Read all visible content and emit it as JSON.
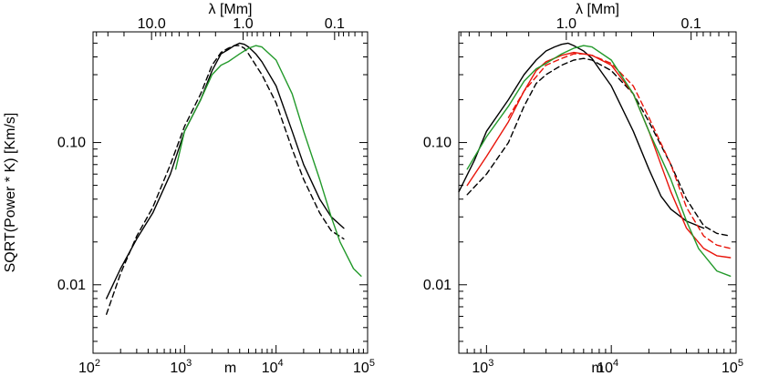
{
  "chart_data": [
    {
      "type": "line",
      "xscale": "log",
      "yscale": "log",
      "xlim": [
        100,
        100000
      ],
      "ylim": [
        0.0033,
        0.6
      ],
      "xlabel": "m",
      "ylabel": "SQRT(Power * K)  [Km/s]",
      "top_axis_label": "λ  [Mm]",
      "x_tick_labels": [
        {
          "base": "10",
          "exp": "2",
          "value": 100
        },
        {
          "base": "10",
          "exp": "3",
          "value": 1000
        },
        {
          "base": "10",
          "exp": "4",
          "value": 10000
        },
        {
          "base": "10",
          "exp": "5",
          "value": 100000
        }
      ],
      "y_tick_labels": [
        {
          "label": "0.01",
          "value": 0.01
        },
        {
          "label": "0.10",
          "value": 0.1
        }
      ],
      "top_tick_labels": [
        {
          "label": "10.0",
          "m": 436
        },
        {
          "label": "1.0",
          "m": 4360
        },
        {
          "label": "0.1",
          "m": 43600
        }
      ],
      "series": [
        {
          "name": "black-solid",
          "color": "#000000",
          "dash": "",
          "x": [
            140,
            200,
            300,
            450,
            700,
            1000,
            1500,
            2000,
            2500,
            3000,
            3500,
            4000,
            4500,
            5000,
            6000,
            7000,
            10000,
            15000,
            20000,
            30000,
            40000,
            55000
          ],
          "y": [
            0.008,
            0.013,
            0.021,
            0.032,
            0.06,
            0.12,
            0.2,
            0.32,
            0.42,
            0.45,
            0.48,
            0.5,
            0.49,
            0.47,
            0.42,
            0.37,
            0.25,
            0.12,
            0.07,
            0.04,
            0.03,
            0.025
          ]
        },
        {
          "name": "black-dashed",
          "color": "#000000",
          "dash": "6,4",
          "x": [
            140,
            200,
            300,
            450,
            700,
            1000,
            1500,
            2000,
            2500,
            3000,
            3500,
            4000,
            4500,
            5000,
            6000,
            7000,
            10000,
            15000,
            20000,
            30000,
            40000,
            55000
          ],
          "y": [
            0.0062,
            0.012,
            0.022,
            0.035,
            0.07,
            0.13,
            0.22,
            0.35,
            0.43,
            0.46,
            0.48,
            0.48,
            0.46,
            0.42,
            0.35,
            0.3,
            0.19,
            0.09,
            0.055,
            0.032,
            0.024,
            0.021
          ]
        },
        {
          "name": "green",
          "color": "#22992a",
          "dash": "",
          "x": [
            800,
            1000,
            1500,
            2000,
            2500,
            3000,
            4000,
            5000,
            6000,
            7000,
            10000,
            15000,
            20000,
            30000,
            40000,
            50000,
            70000,
            85000
          ],
          "y": [
            0.065,
            0.12,
            0.2,
            0.3,
            0.35,
            0.37,
            0.42,
            0.46,
            0.48,
            0.47,
            0.38,
            0.22,
            0.12,
            0.055,
            0.03,
            0.02,
            0.013,
            0.0115
          ]
        }
      ]
    },
    {
      "type": "line",
      "xscale": "log",
      "yscale": "log",
      "xlim": [
        600,
        100000
      ],
      "ylim": [
        0.0033,
        0.6
      ],
      "xlabel": "m",
      "ylabel": "",
      "top_axis_label": "λ  [Mm]",
      "x_tick_labels": [
        {
          "base": "10",
          "exp": "3",
          "value": 1000
        },
        {
          "base": "10",
          "exp": "4",
          "value": 10000
        },
        {
          "base": "10",
          "exp": "5",
          "value": 100000
        }
      ],
      "y_tick_labels": [
        {
          "label": "0.01",
          "value": 0.01
        },
        {
          "label": "0.10",
          "value": 0.1
        }
      ],
      "top_tick_labels": [
        {
          "label": "1.0",
          "m": 4360
        },
        {
          "label": "0.1",
          "m": 43600
        }
      ],
      "series": [
        {
          "name": "black-solid",
          "color": "#000000",
          "dash": "",
          "x": [
            600,
            800,
            1000,
            1500,
            2000,
            2500,
            3000,
            3500,
            4000,
            4500,
            5000,
            6000,
            7000,
            8000,
            10000,
            12000,
            15000,
            20000,
            25000,
            30000,
            40000,
            55000
          ],
          "y": [
            0.045,
            0.075,
            0.12,
            0.2,
            0.3,
            0.38,
            0.44,
            0.47,
            0.49,
            0.5,
            0.48,
            0.44,
            0.39,
            0.33,
            0.25,
            0.18,
            0.12,
            0.065,
            0.042,
            0.034,
            0.028,
            0.025
          ]
        },
        {
          "name": "black-dashed",
          "color": "#000000",
          "dash": "6,4",
          "x": [
            700,
            1000,
            1500,
            2000,
            2500,
            3000,
            4000,
            5000,
            6000,
            7000,
            10000,
            15000,
            20000,
            30000,
            40000,
            55000,
            70000,
            90000
          ],
          "y": [
            0.043,
            0.06,
            0.1,
            0.18,
            0.26,
            0.3,
            0.35,
            0.38,
            0.39,
            0.38,
            0.32,
            0.22,
            0.14,
            0.07,
            0.04,
            0.026,
            0.023,
            0.022
          ]
        },
        {
          "name": "red-solid",
          "color": "#e8140a",
          "dash": "",
          "x": [
            700,
            1000,
            1500,
            2000,
            2500,
            3000,
            4000,
            5000,
            6000,
            7000,
            10000,
            15000,
            20000,
            25000,
            30000,
            40000,
            55000,
            70000,
            90000
          ],
          "y": [
            0.05,
            0.08,
            0.14,
            0.23,
            0.32,
            0.37,
            0.41,
            0.43,
            0.42,
            0.41,
            0.35,
            0.22,
            0.12,
            0.07,
            0.045,
            0.025,
            0.018,
            0.016,
            0.0155
          ]
        },
        {
          "name": "red-dashed",
          "color": "#e8140a",
          "dash": "6,4",
          "x": [
            1500,
            2000,
            3000,
            4000,
            5000,
            6000,
            7000,
            10000,
            15000,
            20000,
            30000,
            40000,
            55000,
            70000,
            90000
          ],
          "y": [
            0.15,
            0.23,
            0.35,
            0.39,
            0.42,
            0.42,
            0.41,
            0.36,
            0.25,
            0.15,
            0.07,
            0.035,
            0.022,
            0.019,
            0.018
          ]
        },
        {
          "name": "green",
          "color": "#22992a",
          "dash": "",
          "x": [
            700,
            1000,
            1500,
            2000,
            2500,
            3000,
            4000,
            5000,
            6000,
            7000,
            10000,
            15000,
            20000,
            30000,
            40000,
            50000,
            70000,
            90000
          ],
          "y": [
            0.065,
            0.11,
            0.18,
            0.27,
            0.33,
            0.36,
            0.42,
            0.46,
            0.48,
            0.47,
            0.38,
            0.22,
            0.12,
            0.055,
            0.028,
            0.018,
            0.0125,
            0.0115
          ]
        }
      ]
    }
  ]
}
